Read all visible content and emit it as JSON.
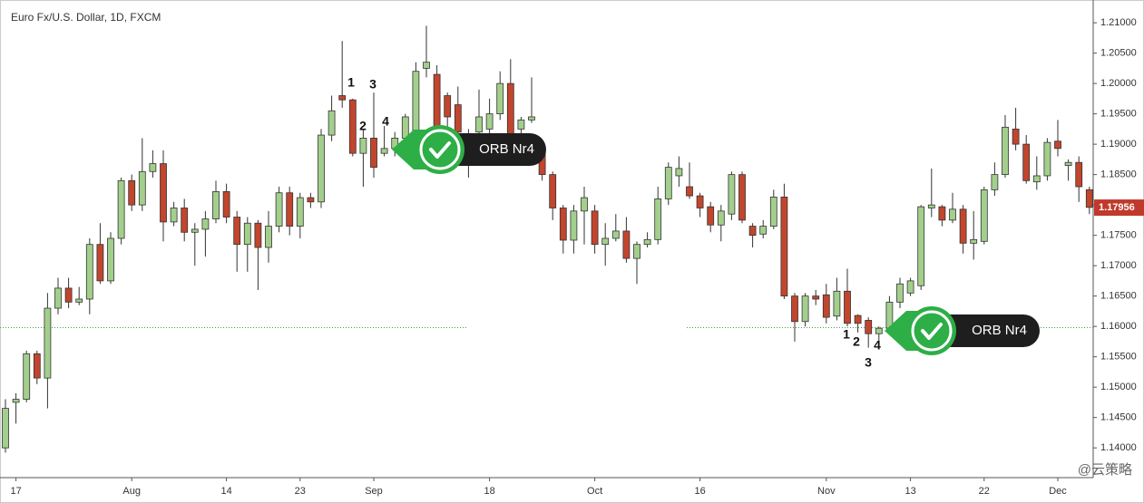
{
  "chart_data": {
    "type": "candlestick",
    "title": "Euro Fx/U.S. Dollar, 1D, FXCM",
    "categories": [
      null,
      "17",
      null,
      null,
      null,
      null,
      null,
      null,
      null,
      null,
      null,
      null,
      "Aug",
      null,
      null,
      null,
      null,
      null,
      null,
      null,
      null,
      "14",
      null,
      null,
      null,
      null,
      null,
      null,
      "23",
      null,
      null,
      null,
      null,
      null,
      null,
      "Sep",
      null,
      null,
      null,
      null,
      null,
      null,
      null,
      null,
      null,
      null,
      "18",
      null,
      null,
      null,
      null,
      null,
      null,
      null,
      null,
      null,
      "Oct",
      null,
      null,
      null,
      null,
      null,
      null,
      null,
      null,
      null,
      "16",
      null,
      null,
      null,
      null,
      null,
      null,
      null,
      null,
      null,
      null,
      null,
      "Nov",
      null,
      null,
      null,
      null,
      null,
      null,
      null,
      "13",
      null,
      null,
      null,
      null,
      null,
      null,
      "22",
      null,
      null,
      null,
      null,
      null,
      null,
      "Dec",
      null,
      null,
      null
    ],
    "open": [
      1.14,
      1.1475,
      1.148,
      1.1555,
      1.1515,
      1.163,
      1.1663,
      1.164,
      1.1645,
      1.1735,
      1.1675,
      1.1745,
      1.184,
      1.18,
      1.1855,
      1.1868,
      1.1772,
      1.1795,
      1.1755,
      1.176,
      1.1777,
      1.1822,
      1.178,
      1.1735,
      1.177,
      1.173,
      1.1765,
      1.182,
      1.1765,
      1.1812,
      1.1805,
      1.1915,
      1.198,
      1.1973,
      1.1885,
      1.191,
      1.1885,
      1.1893,
      1.191,
      1.1915,
      1.2025,
      1.2015,
      1.198,
      1.1965,
      1.1905,
      1.192,
      1.1925,
      1.195,
      1.2,
      1.1925,
      1.194,
      1.1885,
      1.185,
      1.1795,
      1.1742,
      1.179,
      1.179,
      1.1735,
      1.1745,
      1.1757,
      1.1712,
      1.1735,
      1.1743,
      1.181,
      1.1848,
      1.183,
      1.1815,
      1.1797,
      1.1767,
      1.1785,
      1.185,
      1.1765,
      1.1752,
      1.1765,
      1.1813,
      1.165,
      1.1608,
      1.165,
      1.1652,
      1.1617,
      1.1658,
      1.1618,
      1.161,
      1.1588,
      1.1597,
      1.164,
      1.1655,
      1.1667,
      1.1795,
      1.1797,
      1.1775,
      1.1793,
      1.1737,
      1.174,
      1.1825,
      1.185,
      1.1925,
      1.19,
      1.1838,
      1.1848,
      1.1905,
      1.1865,
      1.187,
      1.1825
    ],
    "high": [
      1.148,
      1.149,
      1.156,
      1.156,
      1.1655,
      1.168,
      1.168,
      1.1665,
      1.1745,
      1.177,
      1.1755,
      1.1845,
      1.185,
      1.191,
      1.189,
      1.189,
      1.1805,
      1.181,
      1.177,
      1.179,
      1.184,
      1.1835,
      1.179,
      1.178,
      1.1775,
      1.179,
      1.183,
      1.183,
      1.182,
      1.182,
      1.1925,
      1.198,
      1.207,
      1.1975,
      1.1925,
      1.1985,
      1.193,
      1.192,
      1.195,
      1.2035,
      1.2095,
      1.203,
      1.1985,
      1.1995,
      1.1925,
      1.199,
      1.1975,
      1.202,
      1.204,
      1.1945,
      1.201,
      1.1895,
      1.1855,
      1.18,
      1.18,
      1.183,
      1.18,
      1.177,
      1.1785,
      1.178,
      1.174,
      1.1755,
      1.183,
      1.187,
      1.188,
      1.187,
      1.182,
      1.1805,
      1.18,
      1.1855,
      1.1855,
      1.177,
      1.1775,
      1.1825,
      1.1835,
      1.1655,
      1.1655,
      1.166,
      1.167,
      1.168,
      1.1695,
      1.162,
      1.1615,
      1.16,
      1.165,
      1.168,
      1.168,
      1.18,
      1.186,
      1.18,
      1.182,
      1.18,
      1.179,
      1.183,
      1.187,
      1.1948,
      1.196,
      1.1915,
      1.188,
      1.191,
      1.194,
      1.1875,
      1.188,
      1.183
    ],
    "low": [
      1.1392,
      1.144,
      1.1475,
      1.1505,
      1.1465,
      1.162,
      1.163,
      1.1635,
      1.162,
      1.167,
      1.167,
      1.1735,
      1.179,
      1.179,
      1.1845,
      1.174,
      1.1765,
      1.174,
      1.17,
      1.1715,
      1.177,
      1.177,
      1.169,
      1.169,
      1.166,
      1.1705,
      1.1755,
      1.175,
      1.1745,
      1.1795,
      1.1795,
      1.1905,
      1.196,
      1.188,
      1.183,
      1.1845,
      1.188,
      1.188,
      1.19,
      1.1905,
      1.201,
      1.192,
      1.1915,
      1.1905,
      1.1845,
      1.191,
      1.1905,
      1.194,
      1.19,
      1.19,
      1.1935,
      1.184,
      1.1775,
      1.172,
      1.172,
      1.1735,
      1.172,
      1.17,
      1.174,
      1.1705,
      1.167,
      1.173,
      1.1735,
      1.18,
      1.183,
      1.181,
      1.178,
      1.1755,
      1.174,
      1.1775,
      1.177,
      1.173,
      1.1745,
      1.176,
      1.1645,
      1.1575,
      1.16,
      1.1635,
      1.1605,
      1.161,
      1.16,
      1.159,
      1.1565,
      1.1575,
      1.159,
      1.163,
      1.165,
      1.166,
      1.178,
      1.1765,
      1.177,
      1.172,
      1.171,
      1.1735,
      1.1815,
      1.1845,
      1.189,
      1.1835,
      1.1825,
      1.184,
      1.188,
      1.184,
      1.1805,
      1.1785
    ],
    "close": [
      1.1465,
      1.148,
      1.1555,
      1.1515,
      1.163,
      1.1663,
      1.164,
      1.1645,
      1.1735,
      1.1675,
      1.1745,
      1.184,
      1.18,
      1.1855,
      1.1868,
      1.1772,
      1.1795,
      1.1755,
      1.176,
      1.1777,
      1.1822,
      1.178,
      1.1735,
      1.177,
      1.173,
      1.1765,
      1.182,
      1.1765,
      1.1812,
      1.1805,
      1.1915,
      1.1955,
      1.1973,
      1.1885,
      1.191,
      1.1862,
      1.1893,
      1.191,
      1.1945,
      1.202,
      1.2035,
      1.193,
      1.1945,
      1.192,
      1.1915,
      1.1945,
      1.195,
      1.2,
      1.1905,
      1.194,
      1.1945,
      1.185,
      1.1795,
      1.1742,
      1.179,
      1.1812,
      1.1735,
      1.1745,
      1.1757,
      1.1712,
      1.1735,
      1.1743,
      1.181,
      1.1862,
      1.186,
      1.1815,
      1.1795,
      1.1767,
      1.179,
      1.185,
      1.1775,
      1.175,
      1.1765,
      1.1813,
      1.165,
      1.1608,
      1.165,
      1.1645,
      1.1615,
      1.1658,
      1.1605,
      1.1605,
      1.1588,
      1.1597,
      1.164,
      1.167,
      1.1675,
      1.1797,
      1.18,
      1.1775,
      1.1793,
      1.1737,
      1.1743,
      1.1825,
      1.185,
      1.1928,
      1.19,
      1.184,
      1.1848,
      1.1903,
      1.1893,
      1.187,
      1.183,
      1.1796
    ],
    "up_color": "#a3cf8c",
    "down_color": "#c2452d",
    "ylim": [
      1.1351,
      1.213
    ],
    "yticks": [
      {
        "value": 1.14,
        "label": "1.14000"
      },
      {
        "value": 1.145,
        "label": "1.14500"
      },
      {
        "value": 1.15,
        "label": "1.15000"
      },
      {
        "value": 1.155,
        "label": "1.15500"
      },
      {
        "value": 1.16,
        "label": "1.16000"
      },
      {
        "value": 1.165,
        "label": "1.16500"
      },
      {
        "value": 1.17,
        "label": "1.17000"
      },
      {
        "value": 1.175,
        "label": "1.17500"
      },
      {
        "value": 1.18,
        "label": "1.18000"
      },
      {
        "value": 1.185,
        "label": "1.18500"
      },
      {
        "value": 1.19,
        "label": "1.19000"
      },
      {
        "value": 1.195,
        "label": "1.19500"
      },
      {
        "value": 1.2,
        "label": "1.20000"
      },
      {
        "value": 1.205,
        "label": "1.20500"
      },
      {
        "value": 1.21,
        "label": "1.21000"
      }
    ],
    "grid": false,
    "last_price": 1.17956,
    "reference_line": 1.1598,
    "annotations": [
      {
        "label": "ORB Nr4",
        "counts": [
          "1",
          "2",
          "3",
          "4"
        ]
      },
      {
        "label": "ORB Nr4",
        "counts": [
          "1",
          "2",
          "3",
          "4"
        ]
      }
    ],
    "watermark": "@云策略"
  }
}
